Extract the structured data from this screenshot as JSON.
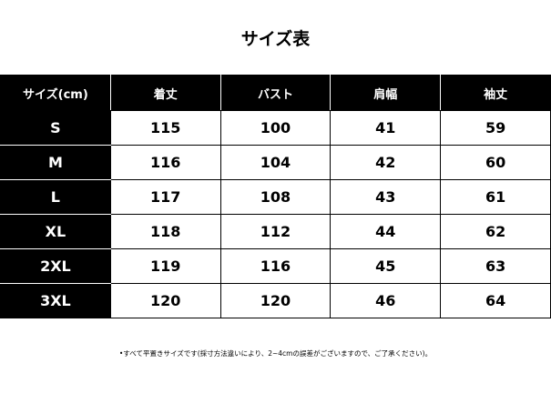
{
  "title": "サイズ表",
  "headers": [
    "サイズ(cm)",
    "着丈",
    "バスト",
    "肩幅",
    "袖丈"
  ],
  "rows": [
    [
      "S",
      "115",
      "100",
      "41",
      "59"
    ],
    [
      "M",
      "116",
      "104",
      "42",
      "60"
    ],
    [
      "L",
      "117",
      "108",
      "43",
      "61"
    ],
    [
      "XL",
      "118",
      "112",
      "44",
      "62"
    ],
    [
      "2XL",
      "119",
      "116",
      "45",
      "63"
    ],
    [
      "3XL",
      "120",
      "120",
      "46",
      "64"
    ]
  ],
  "note": "•すべて平置きサイズです(採寸方法違いにより、2~4cmの誤差がございますので、ご了承ください)。"
}
